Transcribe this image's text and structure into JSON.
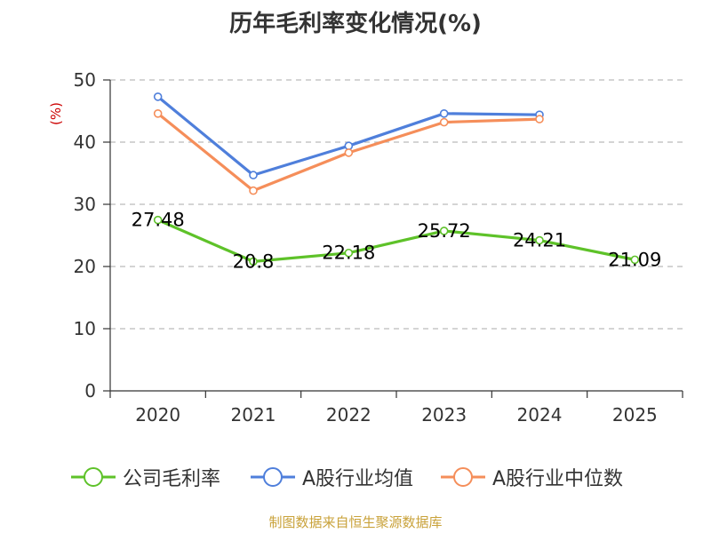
{
  "chart_data": {
    "type": "line",
    "title": "历年毛利率变化情况(%)",
    "ylabel": "(%)",
    "xlabel": "",
    "categories": [
      "2020",
      "2021",
      "2022",
      "2023",
      "2024",
      "2025"
    ],
    "ylim": [
      0,
      50
    ],
    "yticks": [
      0,
      10,
      20,
      30,
      40,
      50
    ],
    "grid": true,
    "legend_position": "bottom",
    "series": [
      {
        "name": "公司毛利率",
        "color": "#5ec229",
        "values": [
          27.48,
          20.8,
          22.18,
          25.72,
          24.21,
          21.09
        ],
        "labels": [
          "27.48",
          "20.8",
          "22.18",
          "25.72",
          "24.21",
          "21.09"
        ]
      },
      {
        "name": "A股行业均值",
        "color": "#4f7fdb",
        "values": [
          47.3,
          34.7,
          39.4,
          44.6,
          44.4,
          null
        ]
      },
      {
        "name": "A股行业中位数",
        "color": "#f58e5a",
        "values": [
          44.6,
          32.2,
          38.3,
          43.2,
          43.7,
          null
        ]
      }
    ]
  },
  "source": "制图数据来自恒生聚源数据库"
}
